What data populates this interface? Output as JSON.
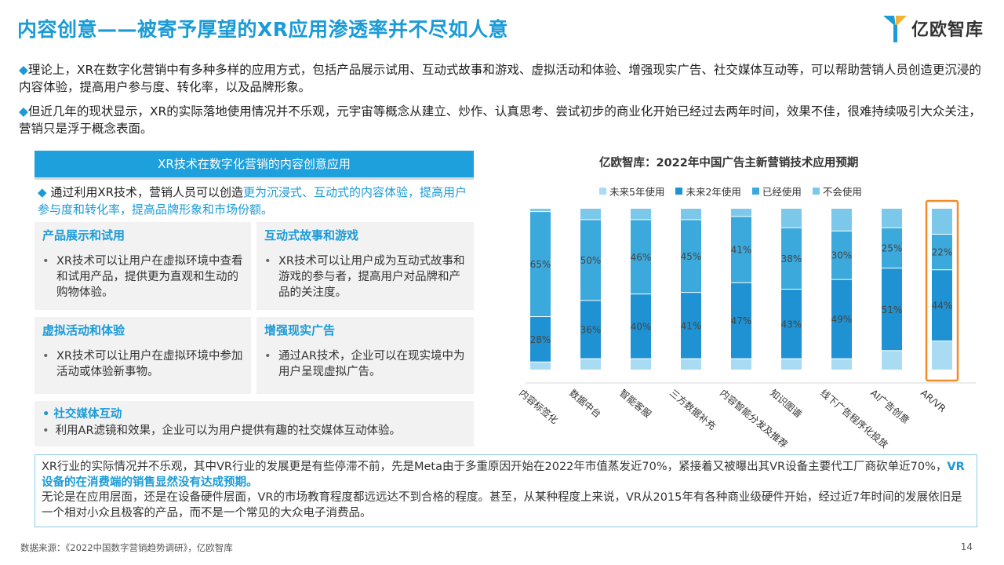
{
  "title": "内容创意——被寄予厚望的XR应用渗透率并不尽如人意",
  "logo": {
    "text": "亿欧智库"
  },
  "paragraphs": [
    "理论上，XR在数字化营销中有多种多样的应用方式，包括产品展示试用、互动式故事和游戏、虚拟活动和体验、增强现实广告、社交媒体互动等，可以帮助营销人员创造更沉浸的内容体验，提高用户参与度、转化率，以及品牌形象。",
    "但近几年的现状显示，XR的实际落地使用情况并不乐观，元宇宙等概念从建立、炒作、认真思考、尝试初步的商业化开始已经过去两年时间，效果不佳，很难持续吸引大众关注，营销只是浮于概念表面。"
  ],
  "section_header": "XR技术在数字化营销的内容创意应用",
  "intro": {
    "prefix": "通过利用XR技术，营销人员可以创造",
    "highlight": "更为沉浸式、互动式的内容体验，提高用户参与度和转化率，提高品牌形象和市场份额。"
  },
  "cards": [
    {
      "title": "产品展示和试用",
      "body": "XR技术可以让用户在虚拟环境中查看和试用产品，提供更为直观和生动的购物体验。"
    },
    {
      "title": "互动式故事和游戏",
      "body": "XR技术可以让用户成为互动式故事和游戏的参与者，提高用户对品牌和产品的关注度。"
    },
    {
      "title": "虚拟活动和体验",
      "body": "XR技术可以让用户在虚拟环境中参加活动或体验新事物。"
    },
    {
      "title": "增强现实广告",
      "body": "通过AR技术，企业可以在现实境中为用户呈现虚拟广告。"
    }
  ],
  "social": {
    "title": "社交媒体互动",
    "body": "利用AR滤镜和效果，企业可以为用户提供有趣的社交媒体互动体验。"
  },
  "bottom": {
    "text1": "XR行业的实际情况并不乐观，其中VR行业的发展更是有些停滞不前，先是Meta由于多重原因开始在2022年市值蒸发近70%，紧接着又被曝出其VR设备主要代工厂商砍单近70%，",
    "highlight": "VR设备的在消费端的销售显然没有达成预期。",
    "text2": "无论是在应用层面，还是在设备硬件层面，VR的市场教育程度都远远达不到合格的程度。甚至，从某种程度上来说，VR从2015年有各种商业级硬件开始，经过近7年时间的发展依旧是一个相对小众且极客的产品，而不是一个常见的大众电子消费品。"
  },
  "source": "数据来源：《2022中国数字营销趋势调研》，亿欧智库",
  "page_number": "14",
  "colors": {
    "accent": "#1a9bd7",
    "highlight_box": "#f28c28",
    "series": [
      "#a9dcf2",
      "#1e92d2",
      "#3ca9dc",
      "#7cc8ea"
    ]
  },
  "chart_data": {
    "type": "bar",
    "stacked": true,
    "percent": true,
    "title": "亿欧智库：2022年中国广告主新营销技术应用预期",
    "categories": [
      "内容标签化",
      "数据中台",
      "智能客服",
      "三方数据补充",
      "内容智能分发及推荐",
      "知识图谱",
      "线下广告程序化投放",
      "AI广告创意",
      "AR/VR"
    ],
    "legend": [
      "未来5年使用",
      "未来2年使用",
      "已经使用",
      "不会使用"
    ],
    "series": [
      {
        "name": "未来5年使用",
        "values": [
          5,
          7,
          7,
          7,
          7,
          7,
          7,
          12,
          18
        ]
      },
      {
        "name": "未来2年使用",
        "values": [
          28,
          36,
          40,
          41,
          47,
          43,
          49,
          51,
          44
        ]
      },
      {
        "name": "已经使用",
        "values": [
          65,
          50,
          46,
          45,
          41,
          38,
          30,
          25,
          22
        ]
      },
      {
        "name": "不会使用",
        "values": [
          2,
          7,
          7,
          7,
          5,
          12,
          14,
          12,
          16
        ]
      }
    ],
    "labels": {
      "未来2年使用": [
        "28%",
        "36%",
        "40%",
        "41%",
        "47%",
        "43%",
        "49%",
        "51%",
        "44%"
      ],
      "已经使用": [
        "65%",
        "50%",
        "46%",
        "45%",
        "41%",
        "38%",
        "30%",
        "25%",
        "22%"
      ]
    },
    "highlighted_category": "AR/VR"
  }
}
